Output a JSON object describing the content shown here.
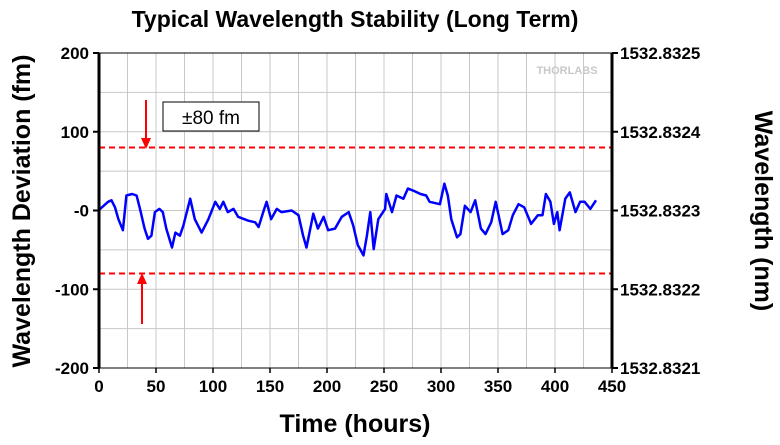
{
  "chart_data": {
    "type": "line",
    "title": "Typical Wavelength Stability (Long Term)",
    "xlabel": "Time (hours)",
    "ylabel": "Wavelength Deviation (fm)",
    "y2label": "Wavelength (nm)",
    "xlim": [
      0,
      450
    ],
    "ylim": [
      -200,
      200
    ],
    "y2lim": [
      1532.8321,
      1532.8325
    ],
    "xticks": [
      "0",
      "50",
      "100",
      "150",
      "200",
      "250",
      "300",
      "350",
      "400",
      "450"
    ],
    "yticks": [
      "200",
      "100",
      "-0",
      "-100",
      "-200"
    ],
    "y2ticks": [
      "1532.8325",
      "1532.8324",
      "1532.8323",
      "1532.8322",
      "1532.8321"
    ],
    "grid": true,
    "annotation": "±80 fm",
    "logo": "THORLABS",
    "thresholds": [
      80,
      -80
    ],
    "line_color": "#0000ff",
    "threshold_color": "#ff0000",
    "series": [
      {
        "name": "Wavelength Deviation",
        "x": [
          0,
          1,
          8,
          11,
          14,
          17,
          21,
          24,
          29,
          33,
          36,
          40,
          43,
          46,
          49,
          53,
          56,
          59,
          64,
          67,
          71,
          74,
          80,
          84,
          90,
          96,
          102,
          106,
          109,
          113,
          118,
          122,
          131,
          137,
          140,
          144,
          147,
          151,
          156,
          160,
          169,
          175,
          179,
          182,
          188,
          192,
          197,
          201,
          207,
          213,
          219,
          223,
          227,
          229,
          232,
          235,
          238,
          241,
          245,
          251,
          252,
          257,
          261,
          267,
          271,
          276,
          282,
          287,
          290,
          299,
          303,
          306,
          309,
          314,
          317,
          321,
          326,
          330,
          335,
          339,
          344,
          348,
          354,
          359,
          363,
          368,
          373,
          379,
          385,
          389,
          392,
          396,
          399,
          402,
          404,
          409,
          413,
          418,
          422,
          426,
          431,
          436
        ],
        "y": [
          0,
          2,
          11,
          13,
          4,
          -11,
          -25,
          19,
          21,
          19,
          2,
          -23,
          -36,
          -32,
          -2,
          2,
          -2,
          -23,
          -47,
          -28,
          -32,
          -19,
          15,
          -11,
          -28,
          -11,
          11,
          2,
          11,
          -2,
          2,
          -8,
          -13,
          -15,
          -21,
          -2,
          11,
          -11,
          2,
          -2,
          0,
          -6,
          -32,
          -47,
          -4,
          -23,
          -8,
          -25,
          -23,
          -8,
          -2,
          -19,
          -44,
          -49,
          -57,
          -32,
          -2,
          -49,
          -11,
          2,
          21,
          -2,
          19,
          15,
          28,
          25,
          21,
          19,
          11,
          8,
          34,
          19,
          -11,
          -34,
          -30,
          6,
          -2,
          13,
          -23,
          -30,
          -15,
          11,
          -30,
          -25,
          -6,
          8,
          4,
          -17,
          -6,
          -6,
          21,
          11,
          -17,
          -2,
          -25,
          15,
          23,
          -2,
          11,
          11,
          2,
          13
        ]
      }
    ]
  }
}
